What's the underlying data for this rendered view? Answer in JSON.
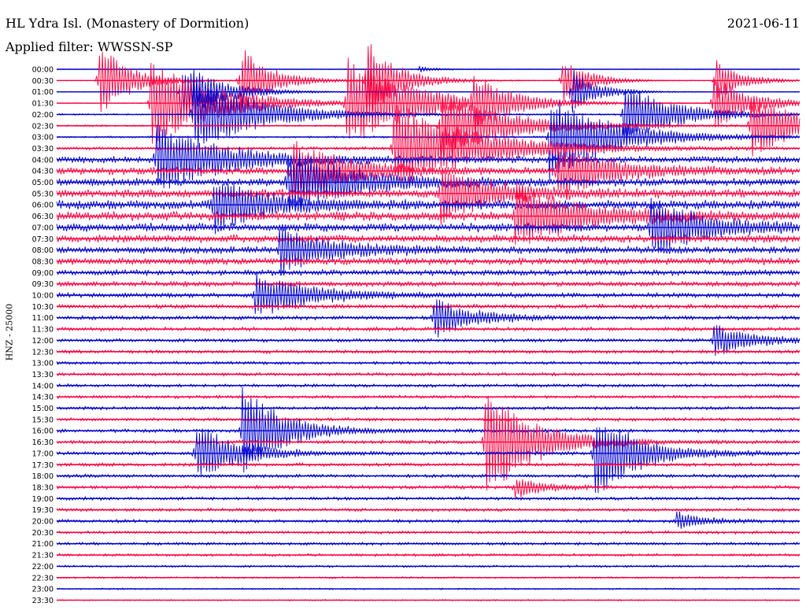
{
  "header": {
    "station": "HL Ydra Isl. (Monastery of Dormition)",
    "filter": "Applied filter: WWSSN-SP",
    "date": "2021-06-11"
  },
  "channel_label": "HNZ - 25000",
  "colors": {
    "trace_a": "#0000CC",
    "trace_b": "#FF0040",
    "text": "#000000",
    "background": "#FFFFFF"
  },
  "chart_data": {
    "type": "seismogram-helicorder",
    "ylabel": "HNZ - 25000",
    "row_labels": [
      "00:00",
      "00:30",
      "01:00",
      "01:30",
      "02:00",
      "02:30",
      "03:00",
      "03:30",
      "04:00",
      "04:30",
      "05:00",
      "05:30",
      "06:00",
      "06:30",
      "07:00",
      "07:30",
      "08:00",
      "08:30",
      "09:00",
      "09:30",
      "10:00",
      "10:30",
      "11:00",
      "11:30",
      "12:00",
      "12:30",
      "13:00",
      "13:30",
      "14:00",
      "14:30",
      "15:00",
      "15:30",
      "16:00",
      "16:30",
      "17:00",
      "17:30",
      "18:00",
      "18:30",
      "19:00",
      "19:30",
      "20:00",
      "20:30",
      "21:00",
      "21:30",
      "22:00",
      "22:30",
      "23:00",
      "23:30"
    ],
    "row_colors": [
      "trace_a",
      "trace_b",
      "trace_a",
      "trace_b"
    ],
    "minutes_per_row": 30,
    "noise_level": [
      0.5,
      0.6,
      0.6,
      0.7,
      1.2,
      1.3,
      1.5,
      2.2,
      4.8,
      5.2,
      5.5,
      6.0,
      6.5,
      6.3,
      6.0,
      5.5,
      5.2,
      4.8,
      4.2,
      3.8,
      3.5,
      3.2,
      3.0,
      2.8,
      2.6,
      2.6,
      2.4,
      2.4,
      2.4,
      2.3,
      2.4,
      2.4,
      2.6,
      2.6,
      2.8,
      2.6,
      2.6,
      2.6,
      2.4,
      2.4,
      2.4,
      2.2,
      2.2,
      2.0,
      1.6,
      1.4,
      1.2,
      1.0
    ],
    "events": [
      {
        "row": 0,
        "minute": 14.6,
        "amplitude": 4,
        "tail": 0.7
      },
      {
        "row": 1,
        "minute": 1.7,
        "amplitude": 50,
        "tail": 1.2
      },
      {
        "row": 1,
        "minute": 7.4,
        "amplitude": 45,
        "tail": 1.2
      },
      {
        "row": 1,
        "minute": 12.5,
        "amplitude": 55,
        "tail": 1.2
      },
      {
        "row": 1,
        "minute": 20.4,
        "amplitude": 32,
        "tail": 1.0
      },
      {
        "row": 1,
        "minute": 26.6,
        "amplitude": 28,
        "tail": 1.0
      },
      {
        "row": 2,
        "minute": 5.0,
        "amplitude": 40,
        "tail": 1.5
      },
      {
        "row": 2,
        "minute": 20.8,
        "amplitude": 30,
        "tail": 1.0
      },
      {
        "row": 3,
        "minute": 3.8,
        "amplitude": 55,
        "tail": 2.5
      },
      {
        "row": 3,
        "minute": 11.7,
        "amplitude": 60,
        "tail": 2.5
      },
      {
        "row": 3,
        "minute": 16.8,
        "amplitude": 30,
        "tail": 1.5
      },
      {
        "row": 3,
        "minute": 26.5,
        "amplitude": 35,
        "tail": 1.5
      },
      {
        "row": 4,
        "minute": 5.5,
        "amplitude": 50,
        "tail": 2.5
      },
      {
        "row": 4,
        "minute": 22.9,
        "amplitude": 40,
        "tail": 2.0
      },
      {
        "row": 5,
        "minute": 15.5,
        "amplitude": 45,
        "tail": 2.5
      },
      {
        "row": 5,
        "minute": 28.0,
        "amplitude": 40,
        "tail": 2.0
      },
      {
        "row": 6,
        "minute": 19.9,
        "amplitude": 55,
        "tail": 2.5
      },
      {
        "row": 7,
        "minute": 13.6,
        "amplitude": 60,
        "tail": 3.0
      },
      {
        "row": 8,
        "minute": 4.0,
        "amplitude": 45,
        "tail": 2.5
      },
      {
        "row": 9,
        "minute": 9.5,
        "amplitude": 40,
        "tail": 2.0
      },
      {
        "row": 9,
        "minute": 20.2,
        "amplitude": 35,
        "tail": 2.0
      },
      {
        "row": 10,
        "minute": 9.3,
        "amplitude": 40,
        "tail": 2.5
      },
      {
        "row": 11,
        "minute": 15.5,
        "amplitude": 35,
        "tail": 2.0
      },
      {
        "row": 12,
        "minute": 6.3,
        "amplitude": 35,
        "tail": 2.0
      },
      {
        "row": 13,
        "minute": 18.5,
        "amplitude": 40,
        "tail": 2.5
      },
      {
        "row": 14,
        "minute": 24.0,
        "amplitude": 35,
        "tail": 2.0
      },
      {
        "row": 16,
        "minute": 9.0,
        "amplitude": 30,
        "tail": 2.0
      },
      {
        "row": 20,
        "minute": 8.0,
        "amplitude": 30,
        "tail": 2.0
      },
      {
        "row": 22,
        "minute": 15.2,
        "amplitude": 25,
        "tail": 1.5
      },
      {
        "row": 24,
        "minute": 26.5,
        "amplitude": 20,
        "tail": 1.5
      },
      {
        "row": 32,
        "minute": 7.5,
        "amplitude": 60,
        "tail": 1.5
      },
      {
        "row": 33,
        "minute": 17.3,
        "amplitude": 75,
        "tail": 1.8
      },
      {
        "row": 34,
        "minute": 5.6,
        "amplitude": 40,
        "tail": 1.5
      },
      {
        "row": 34,
        "minute": 21.7,
        "amplitude": 60,
        "tail": 1.6
      },
      {
        "row": 37,
        "minute": 18.5,
        "amplitude": 15,
        "tail": 1.0
      },
      {
        "row": 40,
        "minute": 25.0,
        "amplitude": 12,
        "tail": 1.0
      }
    ]
  }
}
